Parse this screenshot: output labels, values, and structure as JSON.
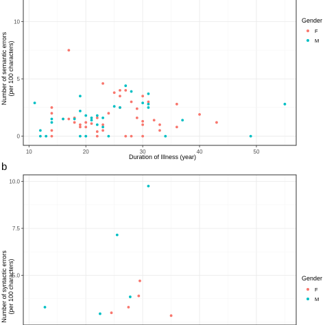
{
  "colors": {
    "F": "#F8766D",
    "M": "#00BFC4",
    "grid_major": "#ebebeb",
    "grid_minor": "#f5f5f5",
    "panel_border": "#333333"
  },
  "panel_b_label": "b",
  "chart_data": [
    {
      "type": "scatter",
      "xlabel": "Duration of Illness (year)",
      "ylabel": [
        "Number of semantic errors",
        "(per 100 characters)"
      ],
      "xlim": [
        9,
        57
      ],
      "ylim": [
        -0.8,
        12
      ],
      "x_ticks": [
        10,
        20,
        30,
        40,
        50
      ],
      "x_tick_labels": [
        "10",
        "20",
        "30",
        "40",
        "50"
      ],
      "y_ticks": [
        0,
        5,
        10
      ],
      "y_tick_labels": [
        "0",
        "5",
        "10"
      ],
      "grid": true,
      "legend": {
        "title": "Gender",
        "position": "right",
        "entries": [
          "F",
          "M"
        ]
      },
      "series": [
        {
          "name": "F",
          "points": [
            [
              14,
              0
            ],
            [
              14,
              0.5
            ],
            [
              14,
              2
            ],
            [
              14,
              2.5
            ],
            [
              16,
              1.5
            ],
            [
              17,
              7.5
            ],
            [
              17,
              1.5
            ],
            [
              18,
              1.6
            ],
            [
              18,
              1.2
            ],
            [
              19,
              1
            ],
            [
              19,
              0.8
            ],
            [
              20,
              1.2
            ],
            [
              20,
              0.8
            ],
            [
              21,
              1.1
            ],
            [
              22,
              0
            ],
            [
              22,
              1.6
            ],
            [
              22,
              0.4
            ],
            [
              23,
              4.6
            ],
            [
              23,
              1
            ],
            [
              23,
              0.5
            ],
            [
              24,
              2
            ],
            [
              25,
              3.8
            ],
            [
              26,
              4
            ],
            [
              26,
              3.5
            ],
            [
              26,
              2.5
            ],
            [
              27,
              0
            ],
            [
              27,
              4
            ],
            [
              28,
              3
            ],
            [
              28,
              0
            ],
            [
              29,
              2.4
            ],
            [
              29,
              1.6
            ],
            [
              30,
              3.5
            ],
            [
              30,
              1.3
            ],
            [
              30,
              1
            ],
            [
              30,
              0
            ],
            [
              31,
              3
            ],
            [
              32,
              1.4
            ],
            [
              33,
              1
            ],
            [
              33,
              0.5
            ],
            [
              36,
              2.8
            ],
            [
              36,
              0.8
            ],
            [
              40,
              1.9
            ],
            [
              43,
              1.2
            ]
          ]
        },
        {
          "name": "M",
          "points": [
            [
              11,
              2.9
            ],
            [
              12,
              0.5
            ],
            [
              12,
              0
            ],
            [
              13,
              0
            ],
            [
              14,
              1.5
            ],
            [
              14,
              1.2
            ],
            [
              16,
              1.5
            ],
            [
              18,
              1.5
            ],
            [
              19,
              3.5
            ],
            [
              19,
              2.2
            ],
            [
              19,
              0
            ],
            [
              20,
              1.8
            ],
            [
              20,
              0
            ],
            [
              21,
              1.4
            ],
            [
              21,
              1.6
            ],
            [
              22,
              1
            ],
            [
              22,
              1.8
            ],
            [
              23,
              1.6
            ],
            [
              23,
              0.8
            ],
            [
              24,
              0
            ],
            [
              25,
              2.6
            ],
            [
              26,
              2.5
            ],
            [
              27,
              4.4
            ],
            [
              28,
              3.9
            ],
            [
              30,
              2.9
            ],
            [
              31,
              2.8
            ],
            [
              31,
              2.5
            ],
            [
              31,
              3.7
            ],
            [
              34,
              0
            ],
            [
              37,
              1.4
            ],
            [
              49,
              0
            ],
            [
              55,
              2.8
            ]
          ]
        }
      ]
    },
    {
      "type": "scatter",
      "xlabel": "",
      "ylabel": [
        "Number of syntactic errors",
        "(per 100 characters)"
      ],
      "xlim": [
        9,
        57
      ],
      "ylim": [
        2.35,
        10.35
      ],
      "y_ticks": [
        5.0,
        7.5,
        10.0
      ],
      "y_tick_labels": [
        "5.0",
        "7.5",
        "10.0"
      ],
      "grid": true,
      "legend": {
        "title": "Gender",
        "position": "right",
        "entries": [
          "F",
          "M"
        ]
      },
      "series": [
        {
          "name": "F",
          "points": [
            [
              29.5,
              4.7
            ],
            [
              29.3,
              3.9
            ],
            [
              27.5,
              3.3
            ],
            [
              24.5,
              3.0
            ],
            [
              35,
              2.85
            ]
          ]
        },
        {
          "name": "M",
          "points": [
            [
              31,
              9.75
            ],
            [
              25.5,
              7.15
            ],
            [
              27.8,
              3.85
            ],
            [
              12.8,
              3.3
            ],
            [
              22.5,
              2.95
            ]
          ]
        }
      ]
    }
  ]
}
